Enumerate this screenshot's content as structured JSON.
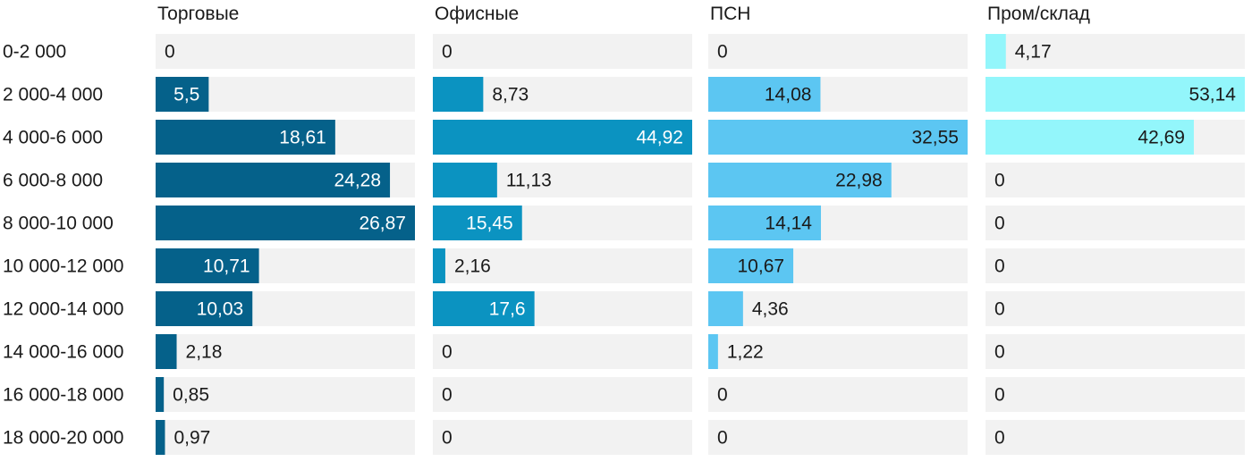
{
  "chart_data": {
    "type": "bar",
    "orientation": "horizontal",
    "layout": "small-multiples",
    "categories": [
      "0-2 000",
      "2 000-4 000",
      "4 000-6 000",
      "6 000-8 000",
      "8 000-10 000",
      "10 000-12 000",
      "12 000-14 000",
      "14 000-16 000",
      "16 000-18 000",
      "18 000-20 000"
    ],
    "series": [
      {
        "name": "Торговые",
        "color": "#05618a",
        "values": [
          0,
          5.5,
          18.61,
          24.28,
          26.87,
          10.71,
          10.03,
          2.18,
          0.85,
          0.97
        ],
        "labels": [
          "0",
          "5,5",
          "18,61",
          "24,28",
          "26,87",
          "10,71",
          "10,03",
          "2,18",
          "0,85",
          "0,97"
        ]
      },
      {
        "name": "Офисные",
        "color": "#0b93c1",
        "values": [
          0,
          8.73,
          44.92,
          11.13,
          15.45,
          2.16,
          17.6,
          0,
          0,
          0
        ],
        "labels": [
          "0",
          "8,73",
          "44,92",
          "11,13",
          "15,45",
          "2,16",
          "17,6",
          "0",
          "0",
          "0"
        ]
      },
      {
        "name": "ПСН",
        "color": "#5cc6f2",
        "values": [
          0,
          14.08,
          32.55,
          22.98,
          14.14,
          10.67,
          4.36,
          1.22,
          0,
          0
        ],
        "labels": [
          "0",
          "14,08",
          "32,55",
          "22,98",
          "14,14",
          "10,67",
          "4,36",
          "1,22",
          "0",
          "0"
        ]
      },
      {
        "name": "Пром/склад",
        "color": "#93f6fb",
        "values": [
          4.17,
          53.14,
          42.69,
          0,
          0,
          0,
          0,
          0,
          0,
          0
        ],
        "labels": [
          "4,17",
          "53,14",
          "42,69",
          "0",
          "0",
          "0",
          "0",
          "0",
          "0",
          "0"
        ]
      }
    ],
    "xlim": [
      [
        0,
        26.87
      ],
      [
        0,
        44.92
      ],
      [
        0,
        32.55
      ],
      [
        0,
        53.14
      ]
    ],
    "track_color": "#f2f2f2",
    "grid": false,
    "legend": "none"
  }
}
